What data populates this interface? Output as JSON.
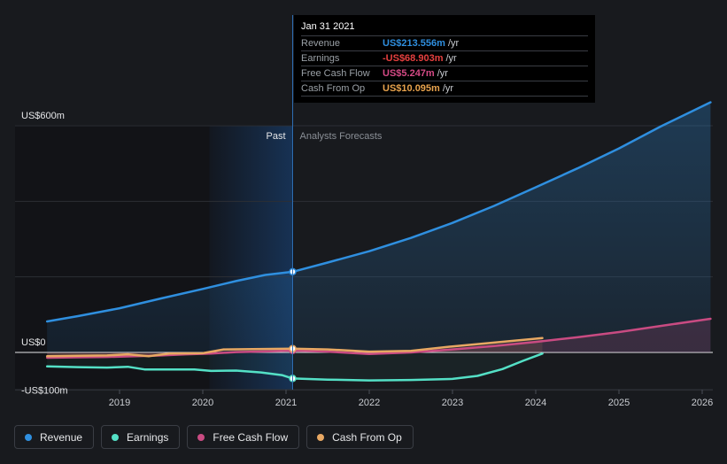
{
  "tooltip": {
    "date": "Jan 31 2021",
    "rows": [
      {
        "label": "Revenue",
        "value": "US$213.556m",
        "unit": "/yr",
        "color": "#2f8fdf"
      },
      {
        "label": "Earnings",
        "value": "-US$68.903m",
        "unit": "/yr",
        "color": "#e6403f"
      },
      {
        "label": "Free Cash Flow",
        "value": "US$5.247m",
        "unit": "/yr",
        "color": "#d64a86"
      },
      {
        "label": "Cash From Op",
        "value": "US$10.095m",
        "unit": "/yr",
        "color": "#e8a34d"
      }
    ]
  },
  "legend": [
    {
      "label": "Revenue",
      "color": "#2f8fdf"
    },
    {
      "label": "Earnings",
      "color": "#54e0c6"
    },
    {
      "label": "Free Cash Flow",
      "color": "#c94b82"
    },
    {
      "label": "Cash From Op",
      "color": "#e8a863"
    }
  ],
  "chart_data": {
    "type": "line",
    "past_label": "Past",
    "forecast_label": "Analysts Forecasts",
    "y_labels": [
      {
        "text": "US$600m",
        "value": 600
      },
      {
        "text": "US$0",
        "value": 0
      },
      {
        "text": "-US$100m",
        "value": -100
      }
    ],
    "x_ticks": [
      "2019",
      "2020",
      "2021",
      "2022",
      "2023",
      "2024",
      "2025",
      "2026"
    ],
    "ylim": [
      -100,
      600
    ],
    "xlim": [
      2018.1,
      2026.1
    ],
    "divider_x": 2021.08,
    "highlight_start_x": 2020.08,
    "gridlines": [
      600,
      400,
      200,
      0,
      -100
    ],
    "series": [
      {
        "name": "Revenue",
        "color": "#2f8fdf",
        "points": [
          [
            2018.13,
            82
          ],
          [
            2018.5,
            96
          ],
          [
            2019.0,
            117
          ],
          [
            2019.5,
            143
          ],
          [
            2020.0,
            168
          ],
          [
            2020.4,
            189
          ],
          [
            2020.75,
            205
          ],
          [
            2021.08,
            213.6
          ],
          [
            2021.5,
            238
          ],
          [
            2022.0,
            268
          ],
          [
            2022.5,
            303
          ],
          [
            2023.0,
            343
          ],
          [
            2023.5,
            388
          ],
          [
            2024.0,
            437
          ],
          [
            2024.5,
            487
          ],
          [
            2025.0,
            540
          ],
          [
            2025.5,
            598
          ],
          [
            2026.1,
            662
          ]
        ],
        "marker_x": 2021.08
      },
      {
        "name": "Earnings",
        "color": "#54e0c6",
        "points": [
          [
            2018.13,
            -37
          ],
          [
            2018.5,
            -39
          ],
          [
            2018.85,
            -40
          ],
          [
            2019.1,
            -38
          ],
          [
            2019.3,
            -45
          ],
          [
            2019.6,
            -45
          ],
          [
            2019.9,
            -45
          ],
          [
            2020.1,
            -49
          ],
          [
            2020.4,
            -48
          ],
          [
            2020.7,
            -53
          ],
          [
            2020.95,
            -60
          ],
          [
            2021.08,
            -68.9
          ],
          [
            2021.5,
            -72
          ],
          [
            2022.0,
            -74
          ],
          [
            2022.5,
            -73
          ],
          [
            2023.0,
            -70
          ],
          [
            2023.3,
            -62
          ],
          [
            2023.6,
            -44
          ],
          [
            2023.85,
            -22
          ],
          [
            2024.08,
            -3
          ]
        ],
        "marker_x": 2021.08
      },
      {
        "name": "Free Cash Flow",
        "color": "#c94b82",
        "points": [
          [
            2018.13,
            -14
          ],
          [
            2018.5,
            -13
          ],
          [
            2018.85,
            -12
          ],
          [
            2019.2,
            -10
          ],
          [
            2019.5,
            -8
          ],
          [
            2019.8,
            -5
          ],
          [
            2020.1,
            -3
          ],
          [
            2020.4,
            1
          ],
          [
            2020.8,
            3
          ],
          [
            2021.08,
            5.2
          ],
          [
            2021.5,
            2
          ],
          [
            2022.0,
            -4
          ],
          [
            2022.5,
            0
          ],
          [
            2023.0,
            8
          ],
          [
            2023.5,
            17
          ],
          [
            2024.0,
            28
          ],
          [
            2024.5,
            40
          ],
          [
            2025.0,
            54
          ],
          [
            2025.5,
            70
          ],
          [
            2026.1,
            89
          ]
        ],
        "marker_x": 2021.08
      },
      {
        "name": "Cash From Op",
        "color": "#e8a863",
        "points": [
          [
            2018.13,
            -10
          ],
          [
            2018.5,
            -9
          ],
          [
            2018.85,
            -8
          ],
          [
            2019.1,
            -5
          ],
          [
            2019.35,
            -10
          ],
          [
            2019.6,
            -3
          ],
          [
            2020.0,
            -2
          ],
          [
            2020.25,
            8
          ],
          [
            2020.6,
            9
          ],
          [
            2021.08,
            10.1
          ],
          [
            2021.5,
            8
          ],
          [
            2022.0,
            2
          ],
          [
            2022.5,
            4
          ],
          [
            2023.0,
            16
          ],
          [
            2023.5,
            26
          ],
          [
            2024.08,
            38
          ]
        ],
        "marker_x": 2021.08
      }
    ]
  }
}
